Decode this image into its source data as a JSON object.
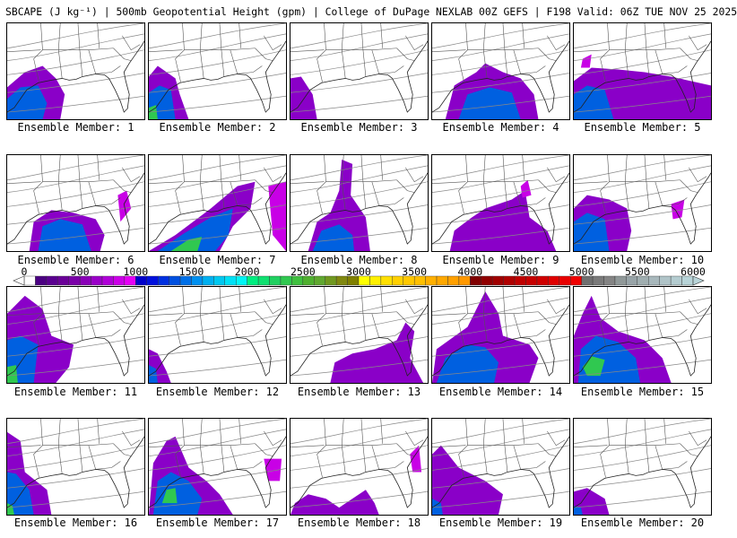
{
  "title": "SBCAPE (J kg⁻¹) | 500mb Geopotential Height (gpm) | College of DuPage NEXLAB 00Z GEFS | F198 Valid: 06Z TUE NOV 25 2025",
  "members": [
    "Ensemble Member: 1",
    "Ensemble Member: 2",
    "Ensemble Member: 3",
    "Ensemble Member: 4",
    "Ensemble Member: 5",
    "Ensemble Member: 6",
    "Ensemble Member: 7",
    "Ensemble Member: 8",
    "Ensemble Member: 9",
    "Ensemble Member: 10",
    "Ensemble Member: 11",
    "Ensemble Member: 12",
    "Ensemble Member: 13",
    "Ensemble Member: 14",
    "Ensemble Member: 15",
    "Ensemble Member: 16",
    "Ensemble Member: 17",
    "Ensemble Member: 18",
    "Ensemble Member: 19",
    "Ensemble Member: 20"
  ],
  "colorbar": {
    "min": 0,
    "max": 6000,
    "step": 100,
    "labels": [
      "0",
      "500",
      "1000",
      "1500",
      "2000",
      "2500",
      "3000",
      "3500",
      "4000",
      "4500",
      "5000",
      "5500",
      "6000"
    ],
    "colors": [
      "#ffffff",
      "#4b0082",
      "#5a0090",
      "#6a0098",
      "#7a00a8",
      "#8a00b8",
      "#9a00c8",
      "#b000d8",
      "#cc00e8",
      "#e600f5",
      "#0000cc",
      "#0010dd",
      "#0030e0",
      "#0050e0",
      "#0070e8",
      "#0090f0",
      "#00b0f0",
      "#00c8f0",
      "#00e0f5",
      "#00f5f5",
      "#00ee80",
      "#10e070",
      "#20d060",
      "#30c850",
      "#40c040",
      "#50b030",
      "#60a830",
      "#709820",
      "#808810",
      "#808000",
      "#ffff00",
      "#fff000",
      "#ffe000",
      "#ffd000",
      "#ffc800",
      "#ffc000",
      "#ffb000",
      "#ffa800",
      "#ffa000",
      "#ff9800",
      "#800000",
      "#900000",
      "#a00000",
      "#b00000",
      "#c00000",
      "#c80000",
      "#d00000",
      "#e00000",
      "#e80000",
      "#f00000",
      "#707070",
      "#7a7a7a",
      "#848484",
      "#909898",
      "#98a4a8",
      "#a0aeb0",
      "#a8b8bc",
      "#b0c4c8",
      "#b4ccd0",
      "#b8d4d8"
    ]
  }
}
